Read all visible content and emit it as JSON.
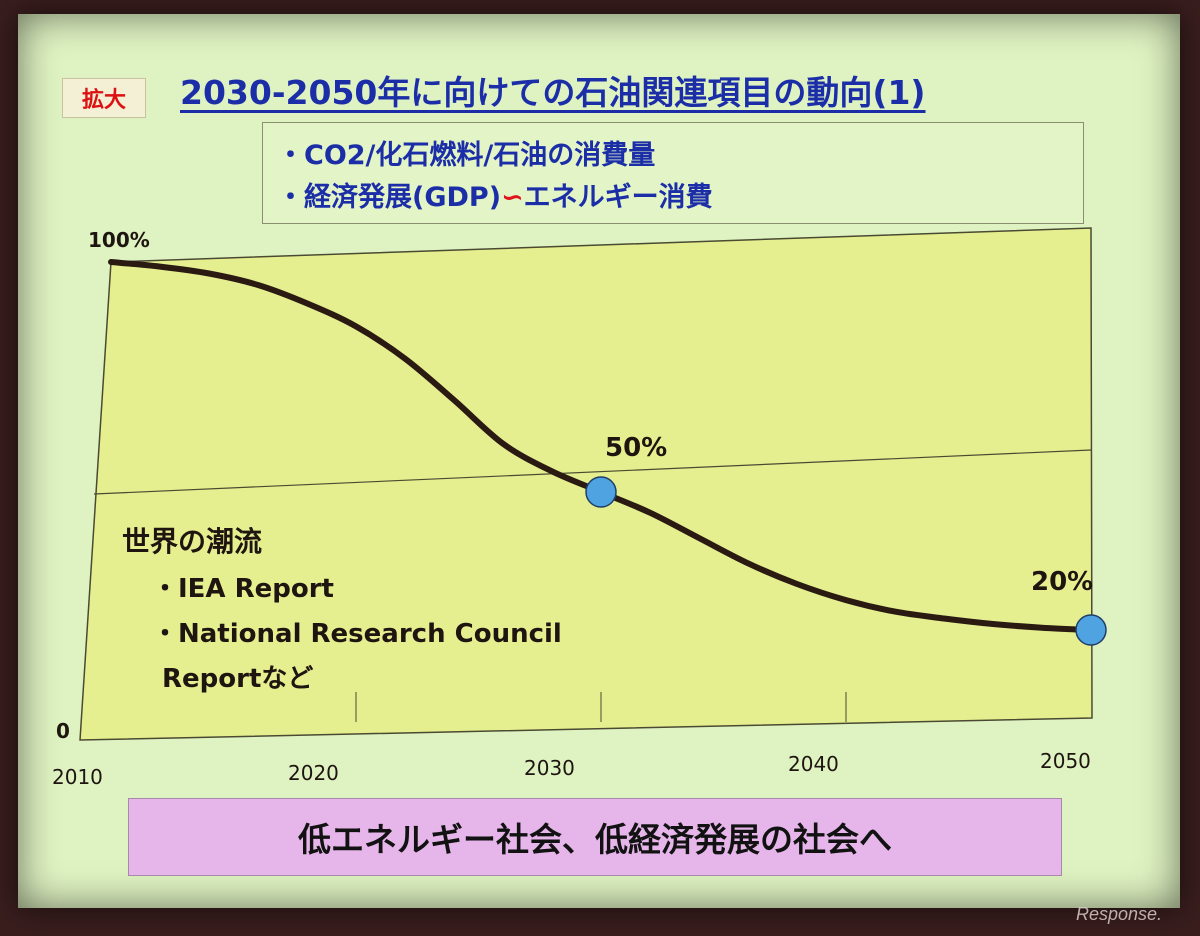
{
  "badge": "拡大",
  "title": "2030-2050年に向けての石油関連項目の動向(1)",
  "bullets": [
    "・CO2/化石燃料/石油の消費量",
    "・経済発展(GDP)",
    "エネルギー消費"
  ],
  "bullet_symbol": "∽",
  "notes": {
    "heading": "世界の潮流",
    "item1": "・IEA Report",
    "item2": "・National Research Council",
    "item2_cont": "Reportなど"
  },
  "banner": "低エネルギー社会、低経済発展の社会へ",
  "watermark": "Response.",
  "colors": {
    "plot_bg": "#e5ef8f",
    "curve": "#2a1a12",
    "marker": "#4ea3e0",
    "title": "#1b2ea8",
    "banner_bg": "#e6b6ea"
  },
  "chart_data": {
    "type": "line",
    "x": [
      2010,
      2012,
      2014,
      2016,
      2018,
      2020,
      2022,
      2024,
      2026,
      2028,
      2030,
      2032,
      2034,
      2036,
      2038,
      2040,
      2042,
      2044,
      2046,
      2048,
      2050
    ],
    "y": [
      100,
      99,
      97.5,
      95,
      91,
      86,
      79,
      70,
      60.5,
      54.5,
      50,
      45.5,
      40,
      34.5,
      30,
      26.5,
      24,
      22.5,
      21.3,
      20.5,
      20
    ],
    "xlim": [
      2010,
      2050
    ],
    "ylim": [
      0,
      100
    ],
    "xticks": [
      "2010",
      "2020",
      "2030",
      "2040",
      "2050"
    ],
    "yticks": [
      "0",
      "100%"
    ],
    "reference_line": 50,
    "markers": [
      {
        "x": 2030,
        "y": 50,
        "label": "50%"
      },
      {
        "x": 2050,
        "y": 20,
        "label": "20%"
      }
    ],
    "grid": false
  }
}
